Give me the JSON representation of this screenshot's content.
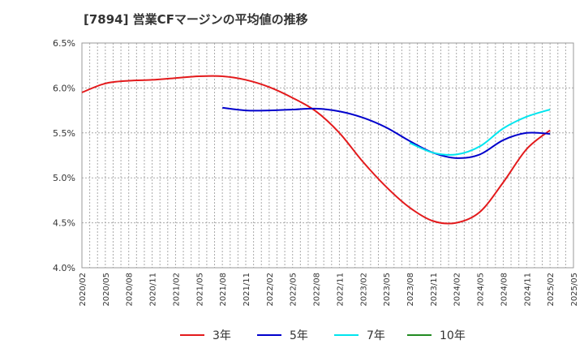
{
  "chart_data": {
    "type": "line",
    "title": "[7894]  営業CFマージンの平均値の推移",
    "xlabel": "",
    "ylabel": "",
    "ylim": [
      4.0,
      6.5
    ],
    "y_ticks": [
      "4.0%",
      "4.5%",
      "5.0%",
      "5.5%",
      "6.0%",
      "6.5%"
    ],
    "x_ticks": [
      "2020/02",
      "2020/05",
      "2020/08",
      "2020/11",
      "2021/02",
      "2021/05",
      "2021/08",
      "2021/11",
      "2022/02",
      "2022/05",
      "2022/08",
      "2022/11",
      "2023/02",
      "2023/05",
      "2023/08",
      "2023/11",
      "2024/02",
      "2024/05",
      "2024/08",
      "2024/11",
      "2025/02",
      "2025/05"
    ],
    "grid": true,
    "legend_position": "bottom",
    "series": [
      {
        "name": "3年",
        "color": "#e31a1c",
        "values": [
          [
            0,
            5.95
          ],
          [
            1,
            6.05
          ],
          [
            2,
            6.08
          ],
          [
            3,
            6.09
          ],
          [
            4,
            6.11
          ],
          [
            5,
            6.13
          ],
          [
            6,
            6.13
          ],
          [
            7,
            6.09
          ],
          [
            8,
            6.01
          ],
          [
            9,
            5.89
          ],
          [
            10,
            5.74
          ],
          [
            11,
            5.5
          ],
          [
            12,
            5.18
          ],
          [
            13,
            4.9
          ],
          [
            14,
            4.67
          ],
          [
            15,
            4.52
          ],
          [
            16,
            4.5
          ],
          [
            17,
            4.62
          ],
          [
            18,
            4.95
          ],
          [
            19,
            5.32
          ],
          [
            20,
            5.53
          ]
        ]
      },
      {
        "name": "5年",
        "color": "#0000cc",
        "values": [
          [
            6,
            5.78
          ],
          [
            7,
            5.75
          ],
          [
            8,
            5.75
          ],
          [
            9,
            5.76
          ],
          [
            10,
            5.77
          ],
          [
            11,
            5.74
          ],
          [
            12,
            5.67
          ],
          [
            13,
            5.56
          ],
          [
            14,
            5.41
          ],
          [
            15,
            5.28
          ],
          [
            16,
            5.22
          ],
          [
            17,
            5.26
          ],
          [
            18,
            5.42
          ],
          [
            19,
            5.5
          ],
          [
            20,
            5.49
          ]
        ]
      },
      {
        "name": "7年",
        "color": "#00e5ee",
        "values": [
          [
            14,
            5.39
          ],
          [
            15,
            5.28
          ],
          [
            16,
            5.26
          ],
          [
            17,
            5.35
          ],
          [
            18,
            5.55
          ],
          [
            19,
            5.68
          ],
          [
            20,
            5.76
          ]
        ]
      },
      {
        "name": "10年",
        "color": "#228b22",
        "values": []
      }
    ]
  }
}
